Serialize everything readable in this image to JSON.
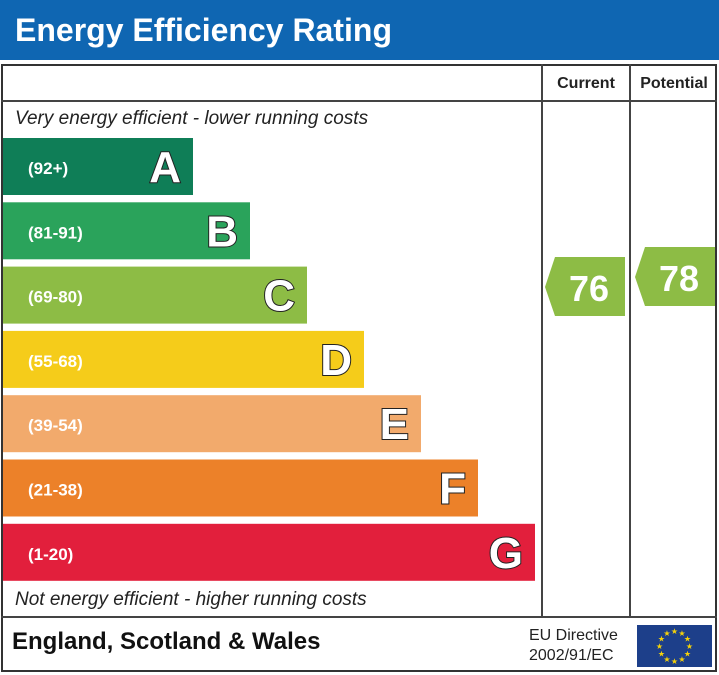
{
  "title": "Energy Efficiency Rating",
  "columns": {
    "current": "Current",
    "potential": "Potential"
  },
  "top_note": "Very energy efficient - lower running costs",
  "bottom_note": "Not energy efficient - higher running costs",
  "footer": {
    "region": "England, Scotland & Wales",
    "directive_line1": "EU Directive",
    "directive_line2": "2002/91/EC",
    "flag_icon": "eu-flag-icon"
  },
  "colors": {
    "title_bar": "#0f66b2",
    "flag": "#1d3f8a",
    "flag_stars": "#f5d20a"
  },
  "chart_data": {
    "type": "bar",
    "categories": [
      "A",
      "B",
      "C",
      "D",
      "E",
      "F",
      "G"
    ],
    "ranges": [
      "(92+)",
      "(81-91)",
      "(69-80)",
      "(55-68)",
      "(39-54)",
      "(21-38)",
      "(1-20)"
    ],
    "colors": [
      "#0f7e57",
      "#2aa35b",
      "#8dbc45",
      "#f5cc1a",
      "#f2aa6c",
      "#ec8129",
      "#e21f3c"
    ],
    "current": {
      "value": 76,
      "band": "C",
      "color": "#8dbc45"
    },
    "potential": {
      "value": 78,
      "band": "C",
      "color": "#8dbc45"
    }
  }
}
